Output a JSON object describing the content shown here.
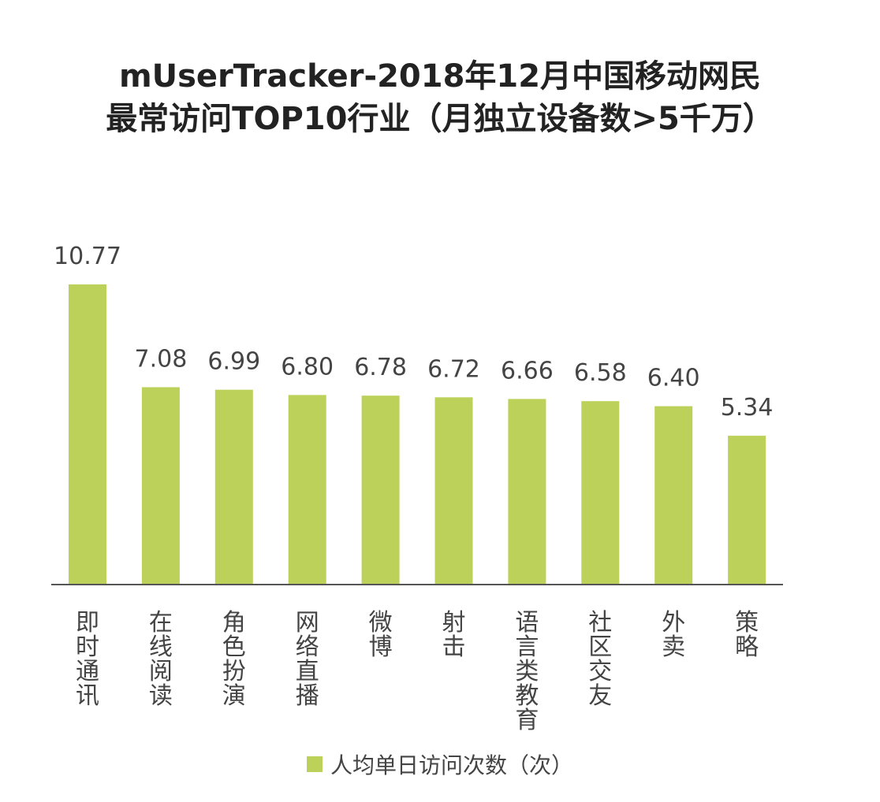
{
  "chart_data": {
    "type": "bar",
    "title": "mUserTracker-2018年12月中国移动网民",
    "subtitle": "最常访问TOP10行业（月独立设备数>5千万）",
    "categories": [
      "即时通讯",
      "在线阅读",
      "角色扮演",
      "网络直播",
      "微博",
      "射击",
      "语言类教育",
      "社区交友",
      "外卖",
      "策略"
    ],
    "series": [
      {
        "name": "人均单日访问次数（次）",
        "values": [
          10.77,
          7.08,
          6.99,
          6.8,
          6.78,
          6.72,
          6.66,
          6.58,
          6.4,
          5.34
        ],
        "labels": [
          "10.77",
          "7.08",
          "6.99",
          "6.80",
          "6.78",
          "6.72",
          "6.66",
          "6.58",
          "6.40",
          "5.34"
        ]
      }
    ],
    "ylim": [
      0,
      10.77
    ],
    "grid": false,
    "legend_position": "bottom",
    "bar_color": "#bbd15a",
    "axis_color": "#555555"
  }
}
